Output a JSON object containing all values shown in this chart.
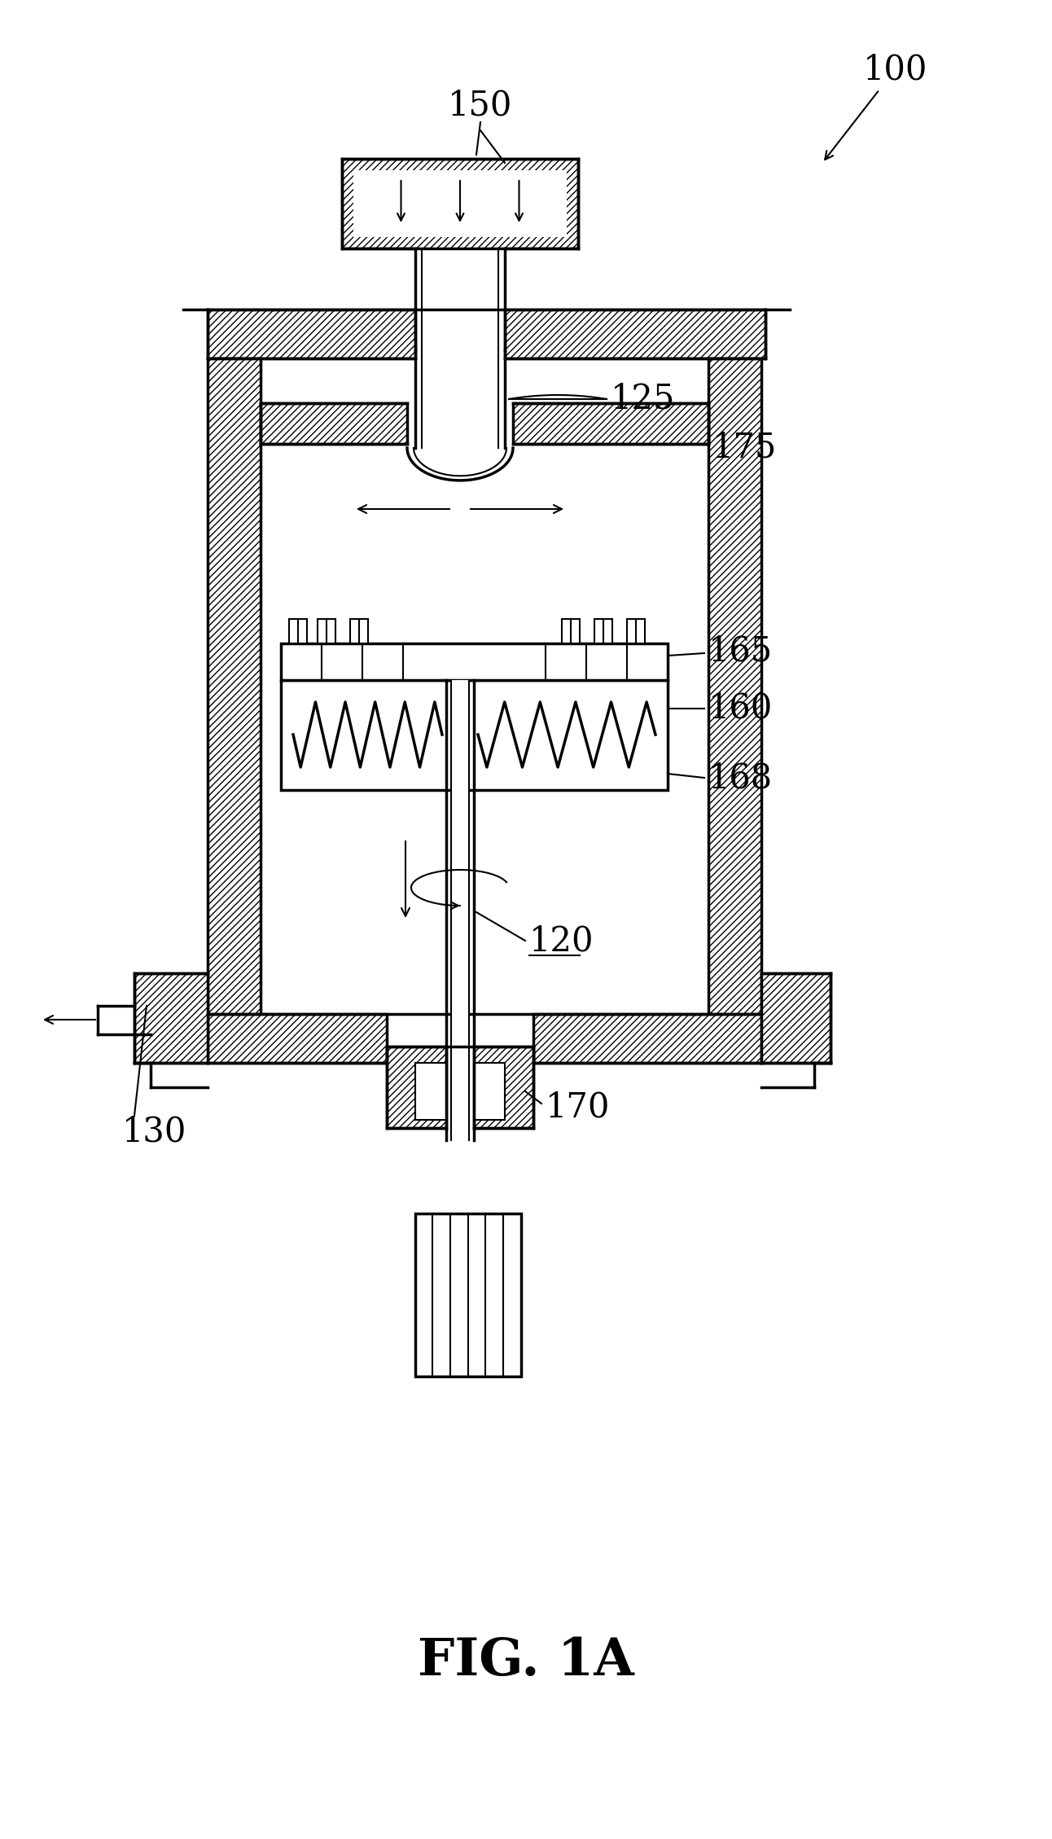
{
  "title": "FIG. 1A",
  "label_100": "100",
  "label_150": "150",
  "label_125": "125",
  "label_175": "175",
  "label_165": "165",
  "label_160": "160",
  "label_168": "168",
  "label_120": "120",
  "label_130": "130",
  "label_170": "170",
  "bg_color": "#ffffff",
  "line_color": "#000000",
  "figsize": [
    12.92,
    22.58
  ],
  "dpi": 100
}
